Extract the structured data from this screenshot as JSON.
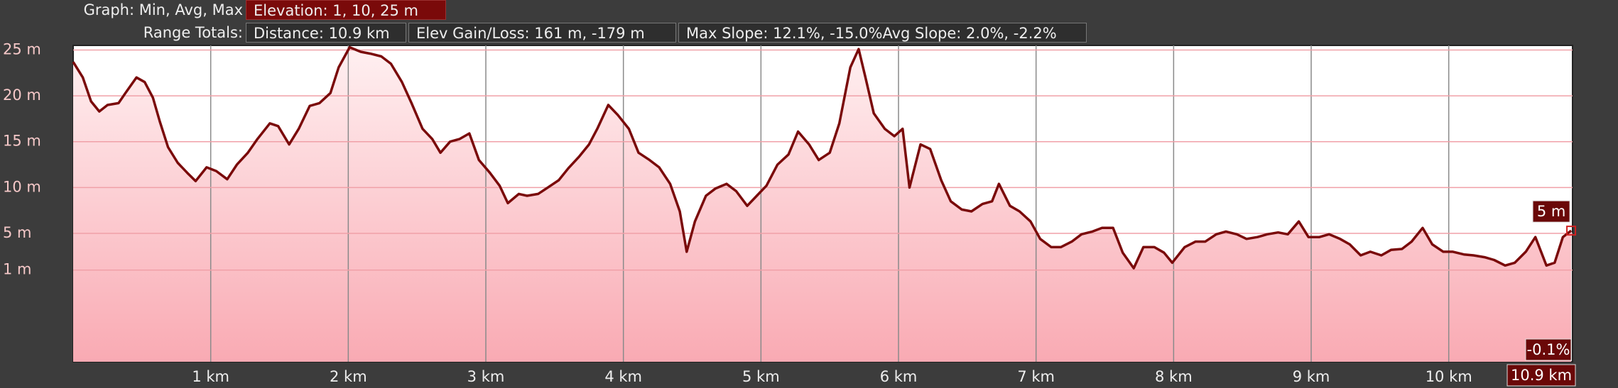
{
  "header": {
    "graph_label": "Graph: Min, Avg, Max",
    "elevation": "Elevation: 1, 10, 25 m",
    "range_label": "Range Totals:",
    "distance": "Distance: 10.9 km",
    "elev_gain_loss": "Elev Gain/Loss: 161 m, -179 m",
    "max_slope": "Max Slope: 12.1%, -15.0%",
    "avg_slope": "Avg Slope: 2.0%, -2.2%"
  },
  "chart_data": {
    "type": "line",
    "xlim": [
      0,
      10.9
    ],
    "ylim": [
      -9,
      25.5
    ],
    "xticks": [
      {
        "value": 1,
        "label": "1 km"
      },
      {
        "value": 2,
        "label": "2 km"
      },
      {
        "value": 3,
        "label": "3 km"
      },
      {
        "value": 4,
        "label": "4 km"
      },
      {
        "value": 5,
        "label": "5 km"
      },
      {
        "value": 6,
        "label": "6 km"
      },
      {
        "value": 7,
        "label": "7 km"
      },
      {
        "value": 8,
        "label": "8 km"
      },
      {
        "value": 9,
        "label": "9 km"
      },
      {
        "value": 10,
        "label": "10 km"
      }
    ],
    "yticks": [
      {
        "value": 25,
        "label": "25 m"
      },
      {
        "value": 20,
        "label": "20 m"
      },
      {
        "value": 15,
        "label": "15 m"
      },
      {
        "value": 10,
        "label": "10 m"
      },
      {
        "value": 5,
        "label": "5 m"
      },
      {
        "value": 1,
        "label": "1 m"
      }
    ],
    "grid": true,
    "series": [
      {
        "color": "#7a0a0a",
        "x": [
          0,
          0.07,
          0.13,
          0.19,
          0.25,
          0.33,
          0.38,
          0.46,
          0.52,
          0.58,
          0.63,
          0.69,
          0.76,
          0.83,
          0.89,
          0.97,
          1.04,
          1.12,
          1.19,
          1.27,
          1.34,
          1.43,
          1.49,
          1.57,
          1.64,
          1.72,
          1.79,
          1.87,
          1.93,
          2.01,
          2.09,
          2.16,
          2.24,
          2.31,
          2.39,
          2.46,
          2.54,
          2.61,
          2.67,
          2.74,
          2.81,
          2.88,
          2.95,
          3.03,
          3.1,
          3.16,
          3.24,
          3.3,
          3.38,
          3.45,
          3.53,
          3.6,
          3.68,
          3.75,
          3.81,
          3.89,
          3.96,
          4.04,
          4.11,
          4.19,
          4.26,
          4.34,
          4.41,
          4.46,
          4.52,
          4.6,
          4.67,
          4.75,
          4.82,
          4.9,
          4.97,
          5.04,
          5.12,
          5.2,
          5.27,
          5.35,
          5.42,
          5.5,
          5.57,
          5.65,
          5.71,
          5.76,
          5.82,
          5.9,
          5.97,
          6.03,
          6.08,
          6.16,
          6.23,
          6.31,
          6.38,
          6.46,
          6.53,
          6.61,
          6.68,
          6.73,
          6.81,
          6.88,
          6.96,
          7.03,
          7.11,
          7.18,
          7.26,
          7.33,
          7.41,
          7.48,
          7.56,
          7.63,
          7.71,
          7.78,
          7.86,
          7.93,
          7.99,
          8.08,
          8.16,
          8.23,
          8.31,
          8.38,
          8.46,
          8.53,
          8.61,
          8.68,
          8.76,
          8.83,
          8.91,
          8.98,
          9.06,
          9.13,
          9.21,
          9.28,
          9.36,
          9.43,
          9.51,
          9.58,
          9.66,
          9.73,
          9.81,
          9.88,
          9.96,
          10.03,
          10.11,
          10.18,
          10.26,
          10.33,
          10.41,
          10.48,
          10.56,
          10.63,
          10.71,
          10.77,
          10.83,
          10.89
        ],
        "values": [
          23.7,
          22.0,
          19.4,
          18.3,
          19.0,
          19.2,
          20.3,
          22.0,
          21.5,
          19.8,
          17.2,
          14.4,
          12.7,
          11.6,
          10.7,
          12.2,
          11.8,
          10.9,
          12.5,
          13.8,
          15.3,
          17.0,
          16.7,
          14.7,
          16.4,
          18.9,
          19.2,
          20.3,
          23.1,
          25.3,
          24.8,
          24.6,
          24.3,
          23.5,
          21.5,
          19.2,
          16.4,
          15.3,
          13.8,
          15.0,
          15.3,
          15.9,
          13.0,
          11.6,
          10.2,
          8.3,
          9.3,
          9.1,
          9.3,
          10.0,
          10.8,
          12.1,
          13.4,
          14.7,
          16.4,
          19.0,
          17.9,
          16.4,
          13.8,
          13.0,
          12.2,
          10.4,
          7.4,
          3.0,
          6.3,
          9.1,
          9.9,
          10.4,
          9.6,
          8.0,
          9.1,
          10.2,
          12.5,
          13.6,
          16.1,
          14.7,
          13.0,
          13.8,
          17.0,
          23.1,
          25.1,
          22.0,
          18.1,
          16.4,
          15.6,
          16.4,
          10.0,
          14.7,
          14.2,
          10.8,
          8.5,
          7.6,
          7.4,
          8.2,
          8.5,
          10.4,
          8.0,
          7.4,
          6.3,
          4.4,
          3.5,
          3.5,
          4.1,
          4.9,
          5.2,
          5.6,
          5.6,
          2.9,
          1.2,
          3.5,
          3.5,
          2.9,
          1.8,
          3.5,
          4.1,
          4.1,
          4.9,
          5.2,
          4.9,
          4.4,
          4.6,
          4.9,
          5.1,
          4.9,
          6.3,
          4.6,
          4.6,
          4.9,
          4.4,
          3.8,
          2.6,
          3.0,
          2.6,
          3.2,
          3.3,
          4.1,
          5.6,
          3.8,
          3.0,
          3.0,
          2.7,
          2.6,
          2.4,
          2.1,
          1.5,
          1.8,
          3.0,
          4.6,
          1.5,
          1.8,
          4.6,
          5.3
        ]
      }
    ],
    "cursor": {
      "elevation_label": "5 m",
      "slope_label": "-0.1%",
      "distance_label": "10.9 km"
    }
  }
}
